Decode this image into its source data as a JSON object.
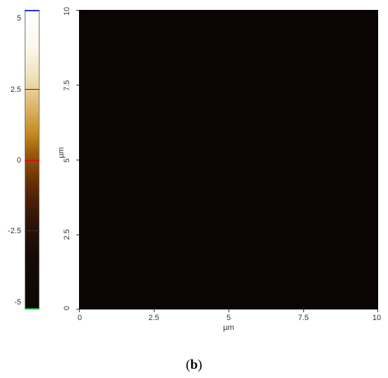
{
  "colorbar": {
    "labels": [
      "5",
      "2.5",
      "0",
      "-2.5",
      "-5"
    ]
  },
  "axes": {
    "x_ticks": [
      "0",
      "2.5",
      "5",
      "7.5",
      "10"
    ],
    "y_ticks": [
      "0",
      "2.5",
      "5",
      "7.5",
      "10"
    ],
    "x_unit": "µm",
    "y_unit": "µm"
  },
  "caption": {
    "open": "(",
    "letter": "b",
    "close": ")"
  },
  "colors": {
    "bright": "#ffffff",
    "mid": "#c58c22",
    "dark": "#0b0705"
  }
}
